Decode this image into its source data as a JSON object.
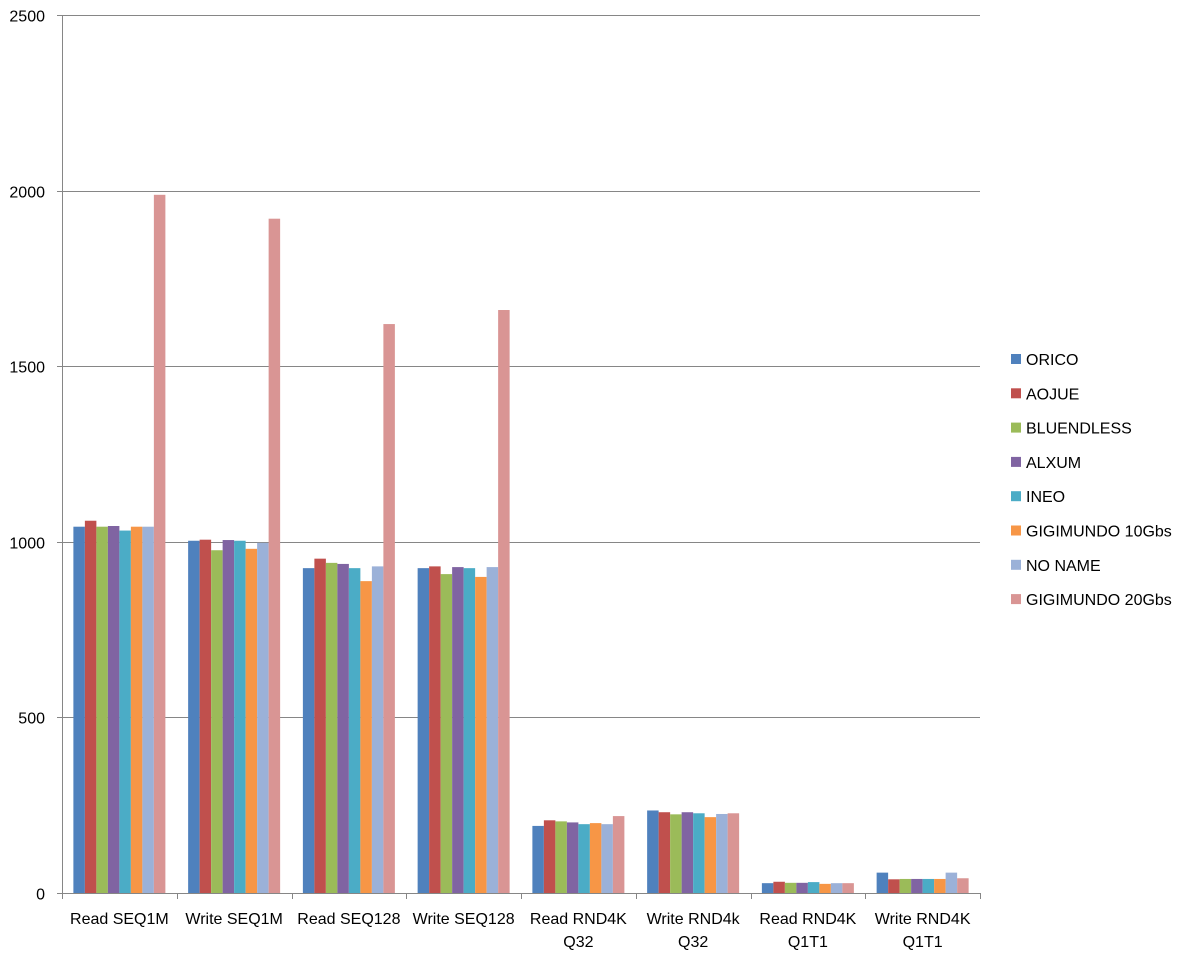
{
  "chart_data": {
    "type": "bar",
    "title": "",
    "xlabel": "",
    "ylabel": "",
    "ylim": [
      0,
      2500
    ],
    "yticks": [
      0,
      500,
      1000,
      1500,
      2000,
      2500
    ],
    "grid": true,
    "legend_position": "right",
    "categories": [
      [
        "Read SEQ1M"
      ],
      [
        "Write SEQ1M"
      ],
      [
        "Read SEQ128"
      ],
      [
        "Write SEQ128"
      ],
      [
        "Read RND4K",
        "Q32"
      ],
      [
        "Write RND4k",
        "Q32"
      ],
      [
        "Read RND4K",
        "Q1T1"
      ],
      [
        "Write RND4K",
        "Q1T1"
      ]
    ],
    "series": [
      {
        "name": "ORICO",
        "color": "#4F81BD",
        "values": [
          1043,
          1003,
          925,
          925,
          191,
          235,
          28,
          58
        ]
      },
      {
        "name": "AOJUE",
        "color": "#C0504D",
        "values": [
          1060,
          1006,
          952,
          930,
          207,
          230,
          32,
          39
        ]
      },
      {
        "name": "BLUENDLESS",
        "color": "#9BBB59",
        "values": [
          1043,
          976,
          940,
          908,
          204,
          224,
          29,
          40
        ]
      },
      {
        "name": "ALXUM",
        "color": "#8064A2",
        "values": [
          1045,
          1005,
          937,
          928,
          201,
          230,
          29,
          40
        ]
      },
      {
        "name": "INEO",
        "color": "#4BACC6",
        "values": [
          1032,
          1003,
          925,
          925,
          196,
          227,
          31,
          40
        ]
      },
      {
        "name": "GIGIMUNDO 10Gbs",
        "color": "#F79646",
        "values": [
          1043,
          980,
          888,
          900,
          199,
          216,
          26,
          40
        ]
      },
      {
        "name": "NO NAME",
        "color": "#9BB1D8",
        "values": [
          1043,
          997,
          930,
          928,
          196,
          225,
          28,
          58
        ]
      },
      {
        "name": "GIGIMUNDO 20Gbs",
        "color": "#D99594",
        "values": [
          1988,
          1920,
          1620,
          1660,
          219,
          227,
          28,
          42
        ]
      }
    ]
  }
}
